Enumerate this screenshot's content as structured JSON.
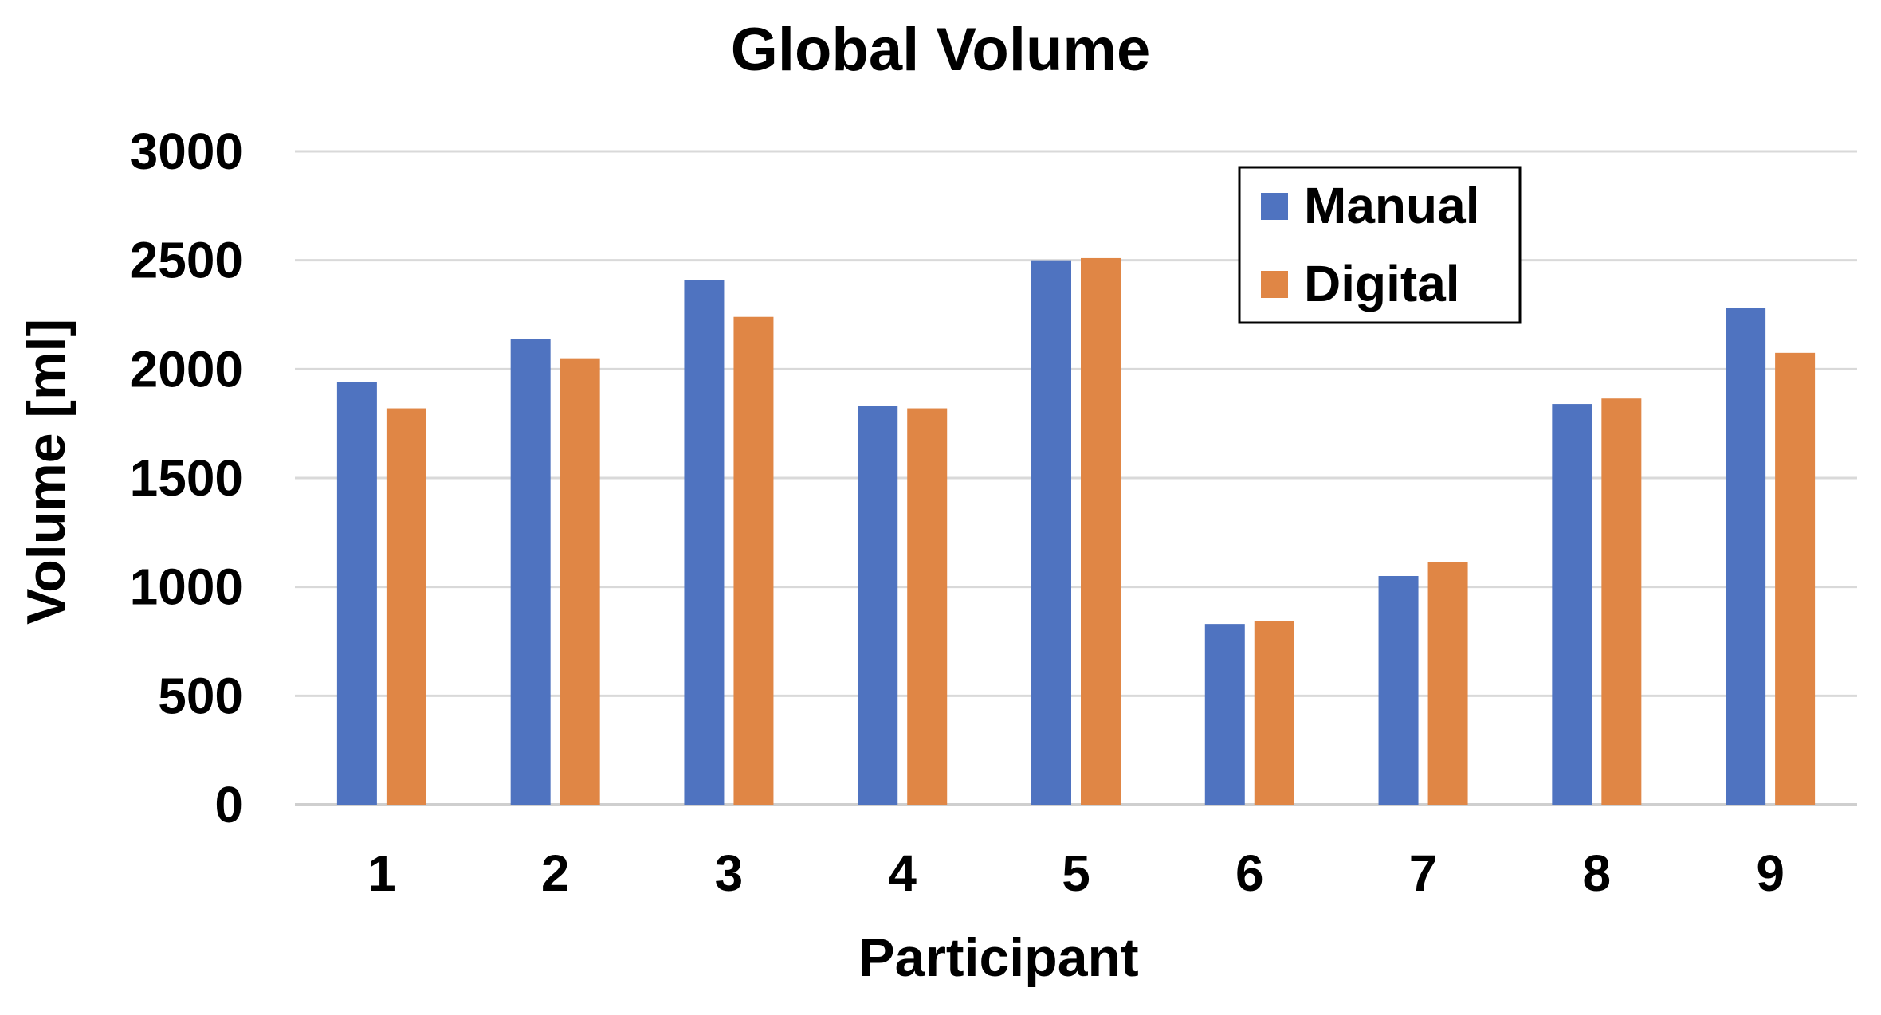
{
  "chart_data": {
    "type": "bar",
    "title": "Global Volume",
    "xlabel": "Participant",
    "ylabel": "Volume [ml]",
    "categories": [
      "1",
      "2",
      "3",
      "4",
      "5",
      "6",
      "7",
      "8",
      "9"
    ],
    "series": [
      {
        "name": "Manual",
        "color": "#4f73c0",
        "values": [
          1940,
          2140,
          2410,
          1830,
          2500,
          830,
          1050,
          1840,
          2280
        ]
      },
      {
        "name": "Digital",
        "color": "#e08645",
        "values": [
          1820,
          2050,
          2240,
          1820,
          2510,
          845,
          1115,
          1865,
          2075
        ]
      }
    ],
    "ylim": [
      0,
      3000
    ],
    "yticks": [
      "0",
      "500",
      "1000",
      "1500",
      "2000",
      "2500",
      "3000"
    ],
    "grid": true,
    "legend_position": "top-right"
  }
}
